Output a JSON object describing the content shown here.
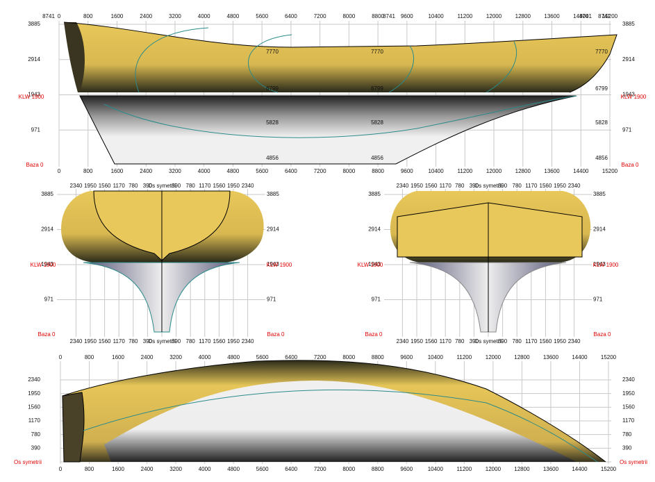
{
  "profile": {
    "x_top": [
      0,
      800,
      1600,
      2400,
      3200,
      4000,
      4800,
      5600,
      6400,
      7200,
      8000,
      8800,
      9600,
      10400,
      11200,
      12000,
      12800,
      13600,
      14400,
      15200
    ],
    "x_bottom": [
      0,
      800,
      1600,
      2400,
      3200,
      4000,
      4800,
      5600,
      6400,
      7200,
      8000,
      8800,
      9600,
      10400,
      11200,
      12000,
      12800,
      13600,
      14400,
      15200
    ],
    "section_label": "8741",
    "y_ticks": [
      3885,
      2914,
      1943,
      971
    ],
    "contour_labels": [
      7770,
      6799,
      5828,
      4856
    ],
    "waterline": "KLW 1900",
    "base": "Baza 0"
  },
  "body_plan": {
    "x_half": [
      2340,
      1950,
      1560,
      1170,
      780,
      390
    ],
    "axis": "Os symetrii",
    "y_ticks": [
      3885,
      2914,
      1943,
      971
    ],
    "waterline": "KLW 1900",
    "base": "Baza 0"
  },
  "plan": {
    "x_ticks": [
      0,
      800,
      1600,
      2400,
      3200,
      4000,
      4800,
      5600,
      6400,
      7200,
      8000,
      8800,
      9600,
      10400,
      11200,
      12000,
      12800,
      13600,
      14400,
      15200
    ],
    "y_ticks": [
      2340,
      1950,
      1560,
      1170,
      780,
      390
    ],
    "axis": "Os symetrii"
  }
}
